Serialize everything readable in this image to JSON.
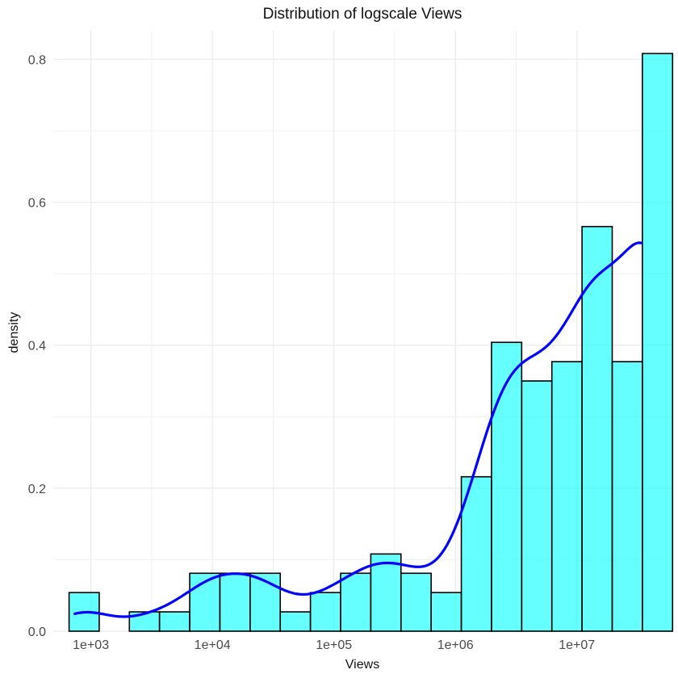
{
  "chart_data": {
    "type": "bar",
    "title": "Distribution of logscale Views",
    "xlabel": "Views",
    "ylabel": "density",
    "x_scale": "log10",
    "x_ticks": [
      1000,
      10000,
      100000,
      1000000,
      10000000
    ],
    "x_tick_labels": [
      "1e+03",
      "1e+04",
      "1e+05",
      "1e+06",
      "1e+07"
    ],
    "y_ticks": [
      0.0,
      0.2,
      0.4,
      0.6,
      0.8
    ],
    "y_tick_labels": [
      "0.0",
      "0.2",
      "0.4",
      "0.6",
      "0.8"
    ],
    "xlim": [
      490,
      62000000
    ],
    "ylim": [
      0,
      0.84
    ],
    "grid": true,
    "colors": {
      "bar_fill": "#00FFFF",
      "bar_stroke": "#000000",
      "density_line": "#0000FF",
      "grid": "#EBEBEB"
    },
    "bins": [
      {
        "x0": 661,
        "x1": 1170,
        "density": 0.054
      },
      {
        "x0": 1170,
        "x1": 2073,
        "density": 0.0
      },
      {
        "x0": 2073,
        "x1": 3672,
        "density": 0.027
      },
      {
        "x0": 3672,
        "x1": 6506,
        "density": 0.027
      },
      {
        "x0": 6506,
        "x1": 11527,
        "density": 0.081
      },
      {
        "x0": 11527,
        "x1": 20423,
        "density": 0.081
      },
      {
        "x0": 20423,
        "x1": 36184,
        "density": 0.081
      },
      {
        "x0": 36184,
        "x1": 64109,
        "density": 0.027
      },
      {
        "x0": 64109,
        "x1": 113583,
        "density": 0.054
      },
      {
        "x0": 113583,
        "x1": 201236,
        "density": 0.081
      },
      {
        "x0": 201236,
        "x1": 356536,
        "density": 0.108
      },
      {
        "x0": 356536,
        "x1": 631681,
        "density": 0.081
      },
      {
        "x0": 631681,
        "x1": 1119158,
        "density": 0.054
      },
      {
        "x0": 1119158,
        "x1": 1982817,
        "density": 0.216
      },
      {
        "x0": 1982817,
        "x1": 3512962,
        "density": 0.404
      },
      {
        "x0": 3512962,
        "x1": 6223930,
        "density": 0.35
      },
      {
        "x0": 6223930,
        "x1": 11027000,
        "density": 0.377
      },
      {
        "x0": 11027000,
        "x1": 19536000,
        "density": 0.566
      },
      {
        "x0": 19536000,
        "x1": 34612000,
        "density": 0.377
      },
      {
        "x0": 34612000,
        "x1": 61322000,
        "density": 0.808
      }
    ],
    "density_curve": {
      "x": [],
      "y": []
    }
  }
}
